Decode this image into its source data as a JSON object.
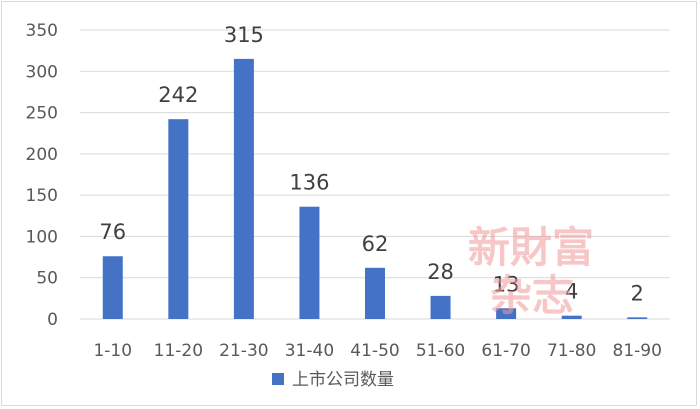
{
  "chart_data": {
    "type": "bar",
    "categories": [
      "1-10",
      "11-20",
      "21-30",
      "31-40",
      "41-50",
      "51-60",
      "61-70",
      "71-80",
      "81-90"
    ],
    "series": [
      {
        "name": "上市公司数量",
        "values": [
          76,
          242,
          315,
          136,
          62,
          28,
          13,
          4,
          2
        ],
        "color": "#4472c4"
      }
    ],
    "ylim": [
      0,
      350
    ],
    "yticks": [
      0,
      50,
      100,
      150,
      200,
      250,
      300,
      350
    ],
    "grid": true,
    "legend_position": "bottom"
  },
  "watermark": {
    "line1": "新財富",
    "line2": "杂志"
  }
}
